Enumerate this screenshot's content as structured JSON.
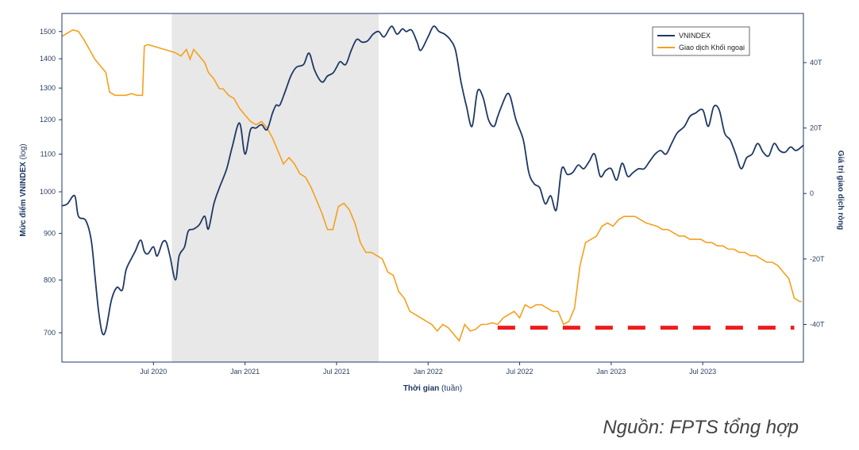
{
  "chart_data": {
    "type": "line",
    "x_label_main": "Thời gian",
    "x_label_sub": "(tuần)",
    "y_label_left_main": "Mức điểm VNINDEX",
    "y_label_left_sub": "(log)",
    "y_label_right": "Giá trị giao dịch ròng",
    "x_ticks": [
      "Jul 2020",
      "Jan 2021",
      "Jul 2021",
      "Jan 2022",
      "Jul 2022",
      "Jan 2023",
      "Jul 2023"
    ],
    "x_tick_values": [
      2020.5,
      2021.0,
      2021.5,
      2022.0,
      2022.5,
      2023.0,
      2023.5
    ],
    "x_range": [
      2020.0,
      2024.05
    ],
    "y_left_ticks": [
      "700",
      "800",
      "900",
      "1000",
      "1100",
      "1200",
      "1300",
      "1400",
      "1500"
    ],
    "y_left_tick_values": [
      700,
      800,
      900,
      1000,
      1100,
      1200,
      1300,
      1400,
      1500
    ],
    "y_left_range": [
      650,
      1570
    ],
    "y_right_ticks": [
      "40T",
      "20T",
      "0",
      "-20T",
      "-40T"
    ],
    "y_right_tick_values": [
      40,
      20,
      0,
      -20,
      -40
    ],
    "y_right_range": [
      -51.5,
      55
    ],
    "shaded_range": [
      2020.6,
      2021.73
    ],
    "colors": {
      "vnindex": "#1f3864",
      "foreign": "#f5a01d",
      "shade": "#e8e8e8",
      "dashed": "#ee1c1c",
      "axis": "#1f3864"
    },
    "series": [
      {
        "name": "VNINDEX",
        "axis": "left",
        "x": [
          2020.0,
          2020.03,
          2020.07,
          2020.09,
          2020.13,
          2020.16,
          2020.18,
          2020.2,
          2020.22,
          2020.24,
          2020.27,
          2020.3,
          2020.33,
          2020.35,
          2020.38,
          2020.4,
          2020.43,
          2020.45,
          2020.47,
          2020.5,
          2020.52,
          2020.55,
          2020.57,
          2020.59,
          2020.62,
          2020.64,
          2020.67,
          2020.69,
          2020.72,
          2020.75,
          2020.78,
          2020.8,
          2020.83,
          2020.86,
          2020.9,
          2020.93,
          2020.97,
          2021.0,
          2021.03,
          2021.06,
          2021.09,
          2021.12,
          2021.15,
          2021.17,
          2021.19,
          2021.22,
          2021.25,
          2021.28,
          2021.32,
          2021.35,
          2021.38,
          2021.42,
          2021.45,
          2021.48,
          2021.5,
          2021.52,
          2021.55,
          2021.58,
          2021.61,
          2021.64,
          2021.67,
          2021.7,
          2021.73,
          2021.76,
          2021.8,
          2021.83,
          2021.86,
          2021.88,
          2021.91,
          2021.94,
          2021.96,
          2022.0,
          2022.03,
          2022.06,
          2022.09,
          2022.12,
          2022.15,
          2022.18,
          2022.21,
          2022.24,
          2022.27,
          2022.3,
          2022.33,
          2022.36,
          2022.38,
          2022.4,
          2022.43,
          2022.45,
          2022.48,
          2022.52,
          2022.55,
          2022.58,
          2022.61,
          2022.64,
          2022.67,
          2022.7,
          2022.73,
          2022.76,
          2022.79,
          2022.82,
          2022.85,
          2022.88,
          2022.91,
          2022.94,
          2022.97,
          2023.0,
          2023.03,
          2023.06,
          2023.09,
          2023.12,
          2023.15,
          2023.18,
          2023.21,
          2023.24,
          2023.27,
          2023.3,
          2023.33,
          2023.36,
          2023.4,
          2023.43,
          2023.46,
          2023.5,
          2023.53,
          2023.56,
          2023.59,
          2023.62,
          2023.65,
          2023.68,
          2023.71,
          2023.74,
          2023.77,
          2023.8,
          2023.83,
          2023.86,
          2023.89,
          2023.92,
          2023.95,
          2023.98,
          2024.01,
          2024.05
        ],
        "values": [
          965,
          970,
          990,
          940,
          930,
          885,
          810,
          740,
          700,
          705,
          760,
          785,
          780,
          820,
          845,
          860,
          885,
          860,
          855,
          870,
          850,
          880,
          880,
          850,
          800,
          850,
          870,
          905,
          910,
          920,
          940,
          910,
          970,
          1010,
          1060,
          1120,
          1190,
          1100,
          1170,
          1175,
          1185,
          1170,
          1220,
          1245,
          1245,
          1290,
          1340,
          1370,
          1380,
          1420,
          1360,
          1320,
          1340,
          1350,
          1370,
          1390,
          1380,
          1430,
          1470,
          1460,
          1465,
          1490,
          1500,
          1480,
          1520,
          1490,
          1510,
          1500,
          1505,
          1460,
          1430,
          1480,
          1520,
          1500,
          1490,
          1470,
          1430,
          1320,
          1240,
          1180,
          1290,
          1270,
          1200,
          1180,
          1210,
          1240,
          1280,
          1270,
          1200,
          1140,
          1050,
          1020,
          1010,
          970,
          990,
          955,
          1060,
          1045,
          1050,
          1070,
          1060,
          1080,
          1100,
          1040,
          1055,
          1060,
          1030,
          1075,
          1040,
          1050,
          1060,
          1060,
          1080,
          1100,
          1110,
          1100,
          1130,
          1160,
          1180,
          1210,
          1220,
          1230,
          1180,
          1240,
          1230,
          1160,
          1140,
          1100,
          1060,
          1090,
          1100,
          1130,
          1105,
          1095,
          1130,
          1110,
          1105,
          1120,
          1110,
          1125
        ]
      },
      {
        "name": "Giao dịch Khối ngoại",
        "axis": "right",
        "x": [
          2020.0,
          2020.03,
          2020.06,
          2020.09,
          2020.12,
          2020.15,
          2020.18,
          2020.21,
          2020.24,
          2020.26,
          2020.29,
          2020.32,
          2020.35,
          2020.38,
          2020.41,
          2020.44,
          2020.45,
          2020.47,
          2020.5,
          2020.53,
          2020.56,
          2020.59,
          2020.62,
          2020.65,
          2020.68,
          2020.7,
          2020.72,
          2020.75,
          2020.78,
          2020.8,
          2020.83,
          2020.86,
          2020.88,
          2020.91,
          2020.94,
          2020.97,
          2021.0,
          2021.03,
          2021.06,
          2021.09,
          2021.12,
          2021.15,
          2021.18,
          2021.21,
          2021.24,
          2021.27,
          2021.3,
          2021.33,
          2021.36,
          2021.39,
          2021.42,
          2021.45,
          2021.48,
          2021.51,
          2021.54,
          2021.57,
          2021.6,
          2021.63,
          2021.66,
          2021.69,
          2021.72,
          2021.75,
          2021.78,
          2021.81,
          2021.84,
          2021.87,
          2021.9,
          2021.93,
          2021.96,
          2021.99,
          2022.02,
          2022.05,
          2022.08,
          2022.11,
          2022.14,
          2022.17,
          2022.2,
          2022.23,
          2022.26,
          2022.29,
          2022.32,
          2022.35,
          2022.38,
          2022.41,
          2022.44,
          2022.47,
          2022.5,
          2022.53,
          2022.56,
          2022.59,
          2022.62,
          2022.65,
          2022.68,
          2022.71,
          2022.74,
          2022.77,
          2022.8,
          2022.83,
          2022.86,
          2022.89,
          2022.92,
          2022.95,
          2022.98,
          2023.01,
          2023.04,
          2023.07,
          2023.1,
          2023.13,
          2023.16,
          2023.19,
          2023.22,
          2023.25,
          2023.28,
          2023.31,
          2023.34,
          2023.37,
          2023.4,
          2023.43,
          2023.46,
          2023.49,
          2023.52,
          2023.55,
          2023.58,
          2023.61,
          2023.64,
          2023.67,
          2023.7,
          2023.73,
          2023.76,
          2023.79,
          2023.82,
          2023.85,
          2023.88,
          2023.91,
          2023.94,
          2023.97,
          2024.0,
          2024.03,
          2024.04
        ],
        "values": [
          48,
          49,
          50,
          49.5,
          47,
          44,
          41,
          39,
          37,
          31,
          30,
          30,
          30,
          30.5,
          30,
          30,
          45,
          45.5,
          45,
          44.5,
          44,
          43.5,
          43,
          42,
          44,
          41,
          44,
          42,
          40,
          37,
          35,
          32,
          32,
          30,
          29,
          26,
          24,
          22,
          21,
          22,
          20,
          17,
          13,
          9,
          11,
          9,
          6,
          5,
          2,
          -2,
          -6,
          -11,
          -11,
          -4,
          -3,
          -5,
          -9,
          -15,
          -18,
          -18,
          -19,
          -20,
          -24,
          -25,
          -30,
          -32,
          -36,
          -37,
          -38,
          -39,
          -40,
          -42,
          -40,
          -41,
          -43,
          -45,
          -40,
          -42,
          -41.5,
          -40,
          -40,
          -39.5,
          -40,
          -38,
          -37,
          -36,
          -38,
          -34,
          -35,
          -34,
          -34,
          -35,
          -36,
          -36,
          -40,
          -39,
          -35,
          -22,
          -15,
          -14,
          -13,
          -10,
          -9,
          -10,
          -8,
          -7,
          -7,
          -7,
          -8,
          -9,
          -9.5,
          -10,
          -11,
          -11,
          -12,
          -13,
          -13,
          -14,
          -14,
          -14,
          -15,
          -15,
          -16,
          -16,
          -17,
          -17,
          -18,
          -18,
          -19,
          -19,
          -20,
          -21,
          -21,
          -22,
          -24,
          -26,
          -32,
          -33,
          -33
        ]
      }
    ],
    "dashed_line": {
      "x_start": 2022.38,
      "x_end": 2024.0,
      "value": -41,
      "axis": "right"
    }
  },
  "legend": {
    "vnindex_label": "VNINDEX",
    "foreign_label": "Giao dịch Khối ngoại"
  },
  "source_text": "Nguồn: FPTS tổng hợp"
}
